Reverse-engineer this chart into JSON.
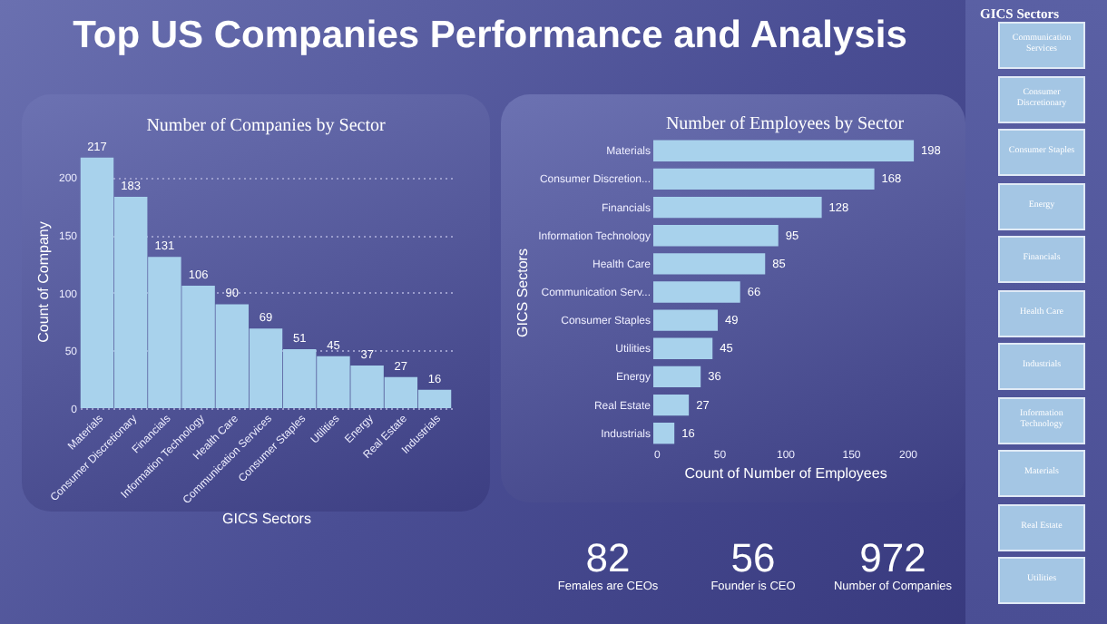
{
  "chart_data": [
    {
      "type": "other",
      "title": "Top US Companies Performance and Analysis"
    },
    {
      "type": "bar",
      "title": "Number of Companies by Sector",
      "xlabel": "GICS Sectors",
      "ylabel": "Count of Company",
      "categories": [
        "Materials",
        "Consumer Discretionary",
        "Financials",
        "Information Technology",
        "Health Care",
        "Communication Services",
        "Consumer Staples",
        "Utilities",
        "Energy",
        "Real Estate",
        "Industrials"
      ],
      "values": [
        217,
        183,
        131,
        106,
        90,
        69,
        51,
        45,
        37,
        27,
        16
      ],
      "color": "#a8d2ec",
      "ylim": [
        0,
        220
      ],
      "yticks": [
        0,
        50,
        100,
        150,
        200
      ],
      "grid": "y",
      "data_labels": true
    },
    {
      "type": "bar",
      "orientation": "horizontal",
      "title": "Number of Employees by Sector",
      "xlabel": "Count of Number of Employees",
      "ylabel": "GICS Sectors",
      "categories": [
        "Materials",
        "Consumer Discretion...",
        "Financials",
        "Information Technology",
        "Health Care",
        "Communication Serv...",
        "Consumer Staples",
        "Utilities",
        "Energy",
        "Real Estate",
        "Industrials"
      ],
      "values": [
        198,
        168,
        128,
        95,
        85,
        66,
        49,
        45,
        36,
        27,
        16
      ],
      "color": "#a8d2ec",
      "xlim": [
        0,
        200
      ],
      "xticks": [
        0,
        50,
        100,
        150,
        200
      ],
      "data_labels": true
    },
    {
      "type": "other",
      "categories": [
        "Females are CEOs",
        "Founder is CEO",
        "Number of Companies"
      ],
      "values": [
        82,
        56,
        972
      ],
      "data_labels": true
    },
    {
      "type": "other",
      "title": "GICS Sectors",
      "categories": [
        "Communication Services",
        "Consumer Discretionary",
        "Consumer Staples",
        "Energy",
        "Financials",
        "Health Care",
        "Industrials",
        "Information Technology",
        "Materials",
        "Real Estate",
        "Utilities"
      ]
    }
  ]
}
